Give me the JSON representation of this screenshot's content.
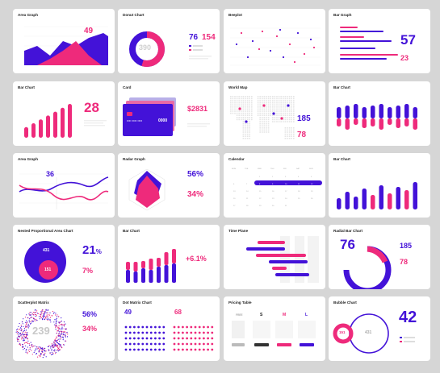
{
  "colors": {
    "pink": "#ee2a7b",
    "purple": "#4312d8",
    "light": "#e8e8f0",
    "grey": "#cfcfcf",
    "bg": "#d6d6d6"
  },
  "cards": {
    "c1": {
      "title": "Area Graph",
      "value": "49"
    },
    "c2": {
      "title": "Donut Chart",
      "center": "390",
      "v1": "76",
      "v2": "154"
    },
    "c3": {
      "title": "Beeplot"
    },
    "c4": {
      "title": "Bar Graph",
      "v1": "57",
      "v2": "23"
    },
    "c5": {
      "title": "Bar Chart",
      "value": "28"
    },
    "c6": {
      "title": "Card",
      "amount": "$2831",
      "dots": "•••• •••• ••••",
      "last4": "0000"
    },
    "c7": {
      "title": "World Map",
      "v1": "185",
      "v2": "78"
    },
    "c8": {
      "title": "Bar Chart"
    },
    "c9": {
      "title": "Area Graph",
      "value": "36"
    },
    "c10": {
      "title": "Radar Graph",
      "v1": "56%",
      "v2": "34%"
    },
    "c11": {
      "title": "Calendar",
      "weekdays": [
        "MON",
        "TUE",
        "WED",
        "THU",
        "FRI",
        "SAT",
        "SUN"
      ],
      "days": [
        "",
        "",
        "1",
        "2",
        "3",
        "4",
        "5",
        "6",
        "7",
        "8",
        "9",
        "10",
        "11",
        "12",
        "13",
        "14",
        "15",
        "16",
        "17",
        "18",
        "19",
        "20",
        "21",
        "22",
        "23",
        "24",
        "25",
        "26",
        "27",
        "28",
        "29",
        "30",
        "31",
        "",
        ""
      ],
      "highlight": [
        "8",
        "9",
        "10",
        "11",
        "12"
      ]
    },
    "c12": {
      "title": "Bar Chart"
    },
    "c13": {
      "title": "Nested Proportional Area Chart",
      "outer": "431",
      "inner": "151",
      "v1": "21",
      "v1unit": "%",
      "v2": "7%"
    },
    "c14": {
      "title": "Bar Chart",
      "value": "+6.1%"
    },
    "c15": {
      "title": "Time Plane"
    },
    "c16": {
      "title": "Radial Bar Chart",
      "value": "76",
      "v1": "185",
      "v2": "78"
    },
    "c17": {
      "title": "Scatterplot Matrix",
      "center": "239",
      "v1": "56%",
      "v2": "34%"
    },
    "c18": {
      "title": "Dot Matrix Chart",
      "v1": "49",
      "v2": "68"
    },
    "c19": {
      "title": "Pricing Table",
      "plans": [
        "FREE",
        "S",
        "M",
        "L"
      ]
    },
    "c20": {
      "title": "Bubble Chart",
      "value": "42",
      "b1": "151",
      "b2": "431"
    }
  },
  "chart_data": [
    {
      "type": "bar",
      "id": "bar5",
      "values": [
        22,
        30,
        38,
        46,
        54,
        62,
        70
      ]
    },
    {
      "type": "bar",
      "id": "bar8",
      "top": [
        14,
        16,
        18,
        14,
        16,
        18,
        14,
        16,
        18,
        14
      ],
      "bottom": [
        10,
        14,
        8,
        12,
        10,
        14,
        8,
        12,
        10,
        14
      ]
    },
    {
      "type": "bar",
      "id": "bar12",
      "values": [
        14,
        22,
        16,
        26,
        18,
        30,
        20,
        28,
        24,
        34
      ],
      "highlight": [
        4,
        6,
        8
      ]
    },
    {
      "type": "bar",
      "id": "bar14",
      "pink": [
        10,
        12,
        9,
        14,
        11,
        16,
        18
      ],
      "purple": [
        16,
        14,
        18,
        16,
        20,
        22,
        24
      ]
    },
    {
      "type": "bar",
      "id": "bar4",
      "series": [
        {
          "name": "pink",
          "values": [
            40,
            60,
            35,
            75
          ]
        },
        {
          "name": "purple",
          "values": [
            55,
            80,
            45,
            90
          ]
        }
      ]
    }
  ]
}
